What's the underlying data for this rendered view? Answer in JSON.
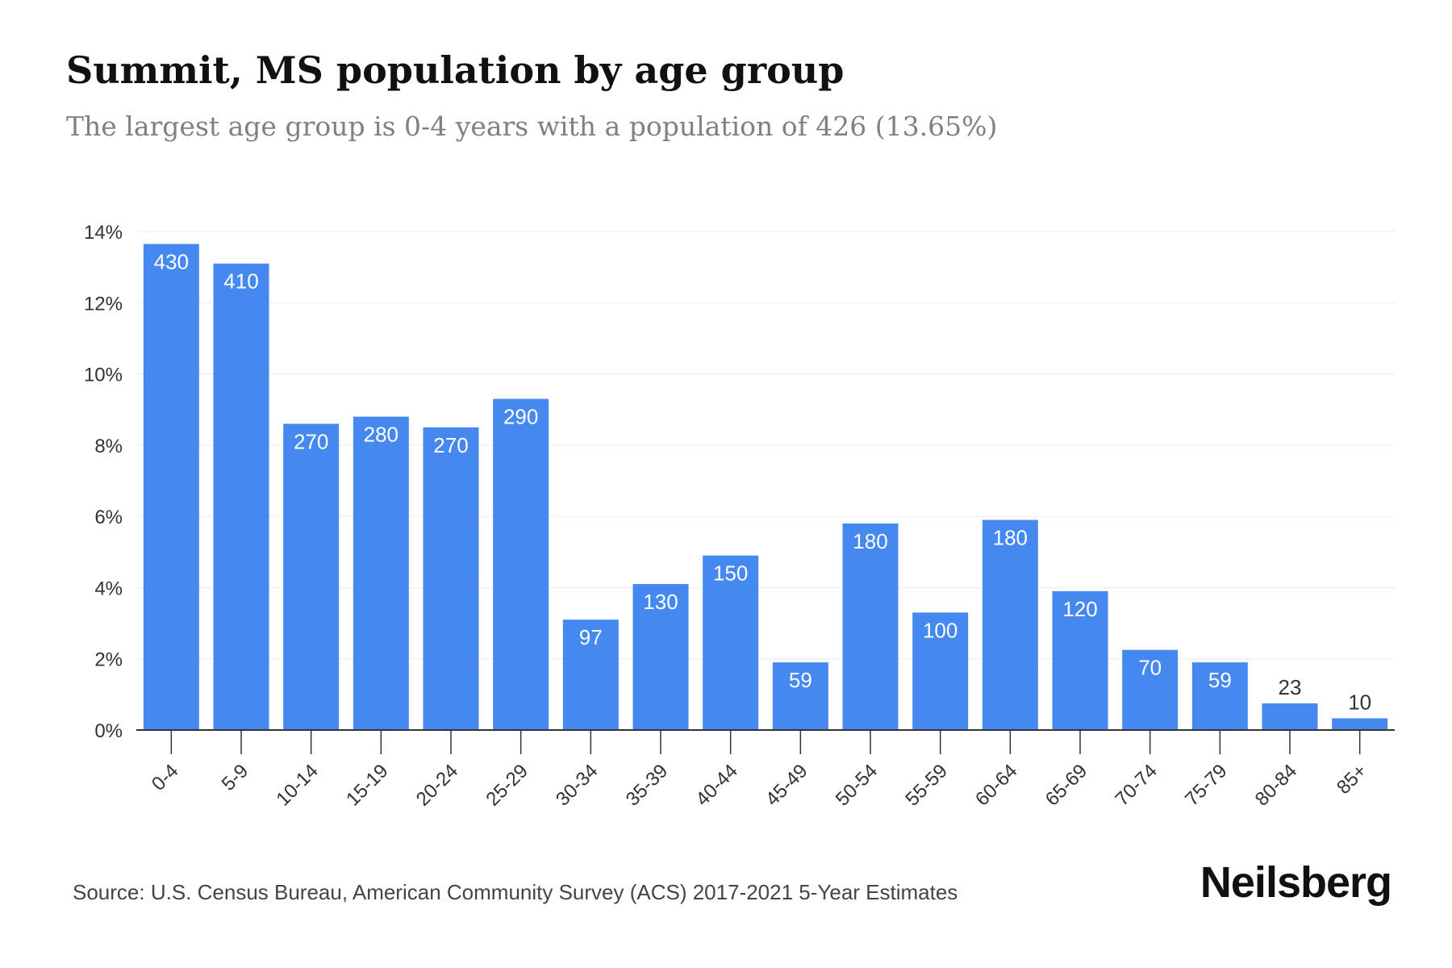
{
  "header": {
    "title": "Summit, MS population by age group",
    "subtitle": "The largest age group is 0-4 years with a population of 426 (13.65%)"
  },
  "footer": {
    "source": "Source: U.S. Census Bureau, American Community Survey (ACS) 2017-2021 5-Year Estimates",
    "brand": "Neilsberg"
  },
  "colors": {
    "bar": "#4589f0",
    "bar_label_inside": "#ffffff",
    "bar_label_outside": "#333333",
    "grid": "#ececec",
    "axis": "#333333",
    "tick_label": "#333333"
  },
  "chart_data": {
    "type": "bar",
    "categories": [
      "0-4",
      "5-9",
      "10-14",
      "15-19",
      "20-24",
      "25-29",
      "30-34",
      "35-39",
      "40-44",
      "45-49",
      "50-54",
      "55-59",
      "60-64",
      "65-69",
      "70-74",
      "75-79",
      "80-84",
      "85+"
    ],
    "values_percent": [
      13.65,
      13.1,
      8.6,
      8.8,
      8.5,
      9.3,
      3.1,
      4.1,
      4.9,
      1.9,
      5.8,
      3.3,
      5.9,
      3.9,
      2.25,
      1.9,
      0.75,
      0.33
    ],
    "labels": [
      "430",
      "410",
      "270",
      "280",
      "270",
      "290",
      "97",
      "130",
      "150",
      "59",
      "180",
      "100",
      "180",
      "120",
      "70",
      "59",
      "23",
      "10"
    ],
    "y_ticks": [
      "0%",
      "2%",
      "4%",
      "6%",
      "8%",
      "10%",
      "12%",
      "14%"
    ],
    "ylim": [
      0,
      14
    ],
    "grid": true,
    "xlabel": "",
    "ylabel": ""
  }
}
